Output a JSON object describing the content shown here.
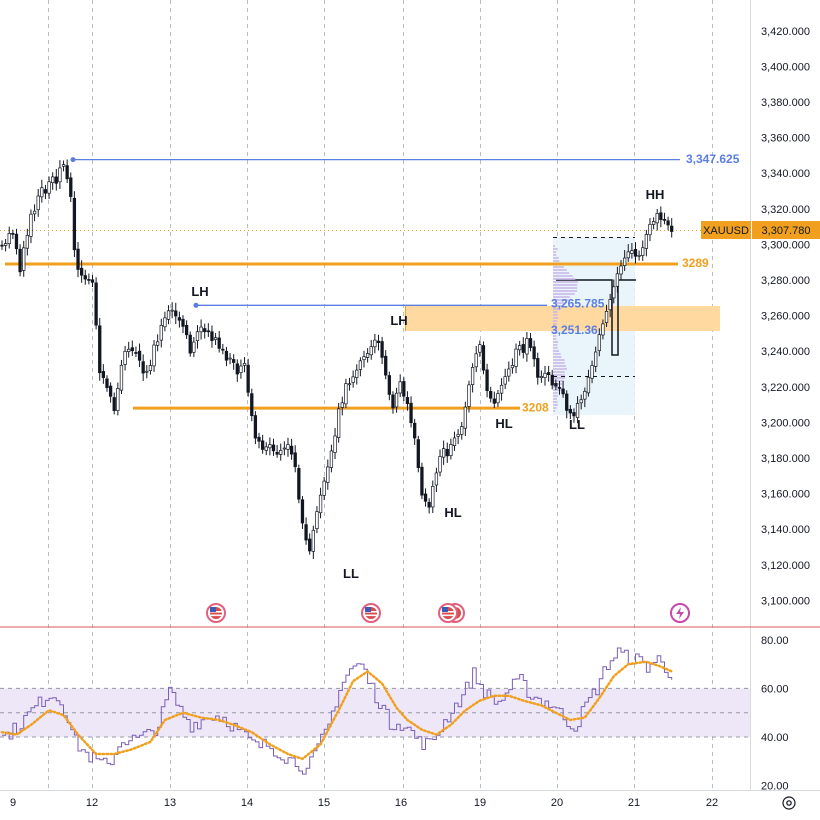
{
  "symbol": "XAUUSD",
  "last_price": "3,307.780",
  "colors": {
    "up": "#ffffff",
    "down": "#131722",
    "wick": "#131722",
    "orange": "#f0a01e",
    "blue": "#5b7fe0",
    "rsi": "#7b5fb4",
    "rsi_band": "#ede7f8",
    "pane_separator": "#e05a5a",
    "grid": "#b8bcc4"
  },
  "chart_data": [
    {
      "type": "candlestick",
      "title": "",
      "xlabel": "",
      "ylabel": "",
      "ylim": [
        3090,
        3435
      ],
      "y_ticks": [
        "3,100.000",
        "3,120.000",
        "3,140.000",
        "3,160.000",
        "3,180.000",
        "3,200.000",
        "3,220.000",
        "3,240.000",
        "3,260.000",
        "3,280.000",
        "3,300.000",
        "3,320.000",
        "3,340.000",
        "3,360.000",
        "3,380.000",
        "3,400.000",
        "3,420.000"
      ],
      "x_ticks": [
        "9",
        "12",
        "13",
        "14",
        "15",
        "16",
        "19",
        "20",
        "21",
        "22"
      ],
      "grid": true,
      "anchors": [
        [
          0,
          3300
        ],
        [
          3,
          3305
        ],
        [
          5,
          3284
        ],
        [
          7,
          3308
        ],
        [
          11,
          3330
        ],
        [
          15,
          3337
        ],
        [
          17,
          3347
        ],
        [
          19,
          3330
        ],
        [
          20,
          3297
        ],
        [
          22,
          3280
        ],
        [
          25,
          3276
        ],
        [
          27,
          3230
        ],
        [
          31,
          3207
        ],
        [
          34,
          3242
        ],
        [
          37,
          3236
        ],
        [
          40,
          3228
        ],
        [
          43,
          3246
        ],
        [
          46,
          3265
        ],
        [
          49,
          3258
        ],
        [
          52,
          3240
        ],
        [
          55,
          3254
        ],
        [
          58,
          3248
        ],
        [
          61,
          3238
        ],
        [
          64,
          3231
        ],
        [
          67,
          3230
        ],
        [
          70,
          3188
        ],
        [
          73,
          3188
        ],
        [
          76,
          3180
        ],
        [
          79,
          3186
        ],
        [
          81,
          3172
        ],
        [
          83,
          3146
        ],
        [
          85,
          3128
        ],
        [
          87,
          3148
        ],
        [
          90,
          3175
        ],
        [
          93,
          3205
        ],
        [
          96,
          3225
        ],
        [
          99,
          3232
        ],
        [
          102,
          3240
        ],
        [
          104,
          3248
        ],
        [
          106,
          3224
        ],
        [
          108,
          3208
        ],
        [
          110,
          3222
        ],
        [
          112,
          3210
        ],
        [
          114,
          3192
        ],
        [
          116,
          3162
        ],
        [
          118,
          3155
        ],
        [
          121,
          3180
        ],
        [
          124,
          3186
        ],
        [
          127,
          3196
        ],
        [
          130,
          3230
        ],
        [
          132,
          3242
        ],
        [
          134,
          3221
        ],
        [
          136,
          3212
        ],
        [
          139,
          3226
        ],
        [
          142,
          3240
        ],
        [
          145,
          3244
        ],
        [
          148,
          3228
        ],
        [
          151,
          3226
        ],
        [
          154,
          3218
        ],
        [
          157,
          3205
        ],
        [
          160,
          3210
        ],
        [
          162,
          3228
        ],
        [
          165,
          3248
        ],
        [
          167,
          3262
        ],
        [
          169,
          3278
        ],
        [
          171,
          3288
        ],
        [
          173,
          3294
        ],
        [
          175,
          3293
        ],
        [
          177,
          3301
        ],
        [
          179,
          3312
        ],
        [
          181,
          3320
        ],
        [
          183,
          3311
        ],
        [
          185,
          3308
        ]
      ]
    },
    {
      "type": "line",
      "title": "",
      "ylim": [
        18,
        85
      ],
      "y_ticks": [
        "20.00",
        "40.00",
        "60.00",
        "80.00"
      ],
      "band": [
        40,
        60
      ],
      "rsi_anchors": [
        [
          0,
          40
        ],
        [
          4,
          44
        ],
        [
          8,
          51
        ],
        [
          13,
          58
        ],
        [
          16,
          55
        ],
        [
          18,
          48
        ],
        [
          20,
          38
        ],
        [
          23,
          33
        ],
        [
          26,
          30
        ],
        [
          29,
          28
        ],
        [
          33,
          39
        ],
        [
          37,
          39
        ],
        [
          40,
          41
        ],
        [
          43,
          45
        ],
        [
          46,
          59
        ],
        [
          49,
          51
        ],
        [
          52,
          45
        ],
        [
          55,
          47
        ],
        [
          58,
          49
        ],
        [
          61,
          48
        ],
        [
          64,
          44
        ],
        [
          67,
          40
        ],
        [
          70,
          36
        ],
        [
          73,
          37
        ],
        [
          76,
          34
        ],
        [
          79,
          31
        ],
        [
          82,
          29
        ],
        [
          84,
          26
        ],
        [
          86,
          32
        ],
        [
          90,
          45
        ],
        [
          93,
          60
        ],
        [
          96,
          68
        ],
        [
          99,
          70
        ],
        [
          101,
          63
        ],
        [
          103,
          57
        ],
        [
          105,
          52
        ],
        [
          107,
          45
        ],
        [
          109,
          47
        ],
        [
          111,
          44
        ],
        [
          113,
          42
        ],
        [
          115,
          38
        ],
        [
          118,
          37
        ],
        [
          121,
          44
        ],
        [
          124,
          51
        ],
        [
          127,
          57
        ],
        [
          130,
          66
        ],
        [
          132,
          61
        ],
        [
          134,
          57
        ],
        [
          137,
          54
        ],
        [
          140,
          60
        ],
        [
          143,
          63
        ],
        [
          146,
          57
        ],
        [
          149,
          55
        ],
        [
          152,
          53
        ],
        [
          155,
          48
        ],
        [
          158,
          44
        ],
        [
          161,
          53
        ],
        [
          164,
          60
        ],
        [
          167,
          70
        ],
        [
          170,
          75
        ],
        [
          172,
          73
        ],
        [
          175,
          72
        ],
        [
          178,
          69
        ],
        [
          181,
          72
        ],
        [
          183,
          68
        ],
        [
          185,
          66
        ]
      ],
      "ma_anchors": [
        [
          0,
          42
        ],
        [
          4,
          41
        ],
        [
          8,
          45
        ],
        [
          13,
          51
        ],
        [
          17,
          49
        ],
        [
          21,
          41
        ],
        [
          26,
          33
        ],
        [
          31,
          33
        ],
        [
          36,
          35
        ],
        [
          41,
          38
        ],
        [
          45,
          47
        ],
        [
          50,
          50
        ],
        [
          55,
          48
        ],
        [
          60,
          47
        ],
        [
          64,
          45
        ],
        [
          69,
          42
        ],
        [
          74,
          37
        ],
        [
          79,
          33
        ],
        [
          83,
          31
        ],
        [
          88,
          37
        ],
        [
          93,
          51
        ],
        [
          97,
          63
        ],
        [
          101,
          67
        ],
        [
          105,
          62
        ],
        [
          109,
          52
        ],
        [
          112,
          47
        ],
        [
          116,
          43
        ],
        [
          120,
          41
        ],
        [
          124,
          45
        ],
        [
          128,
          51
        ],
        [
          132,
          55
        ],
        [
          136,
          57
        ],
        [
          140,
          57
        ],
        [
          144,
          55
        ],
        [
          149,
          53
        ],
        [
          153,
          50
        ],
        [
          157,
          47
        ],
        [
          161,
          48
        ],
        [
          165,
          56
        ],
        [
          169,
          65
        ],
        [
          173,
          70
        ],
        [
          178,
          71
        ],
        [
          182,
          69
        ],
        [
          185,
          67
        ]
      ]
    }
  ],
  "levels": [
    {
      "label": "3,347.625",
      "price": 3347.625,
      "color": "blue"
    },
    {
      "label": "3289",
      "price": 3289,
      "color": "orange"
    },
    {
      "label": "3,265.785",
      "price": 3265.785,
      "color": "blue"
    },
    {
      "label": "3,251.36",
      "price": 3251.36,
      "color": "blue"
    },
    {
      "label": "3208",
      "price": 3208,
      "color": "orange"
    }
  ],
  "swings": [
    "HH",
    "LH",
    "LH",
    "HL",
    "HL",
    "LL",
    "LL"
  ],
  "event_icons": [
    "us-flag-icon",
    "us-flag-icon",
    "us-flag-icon",
    "us-flag-icon",
    "lightning-icon"
  ],
  "settings_icon": "gear-icon"
}
